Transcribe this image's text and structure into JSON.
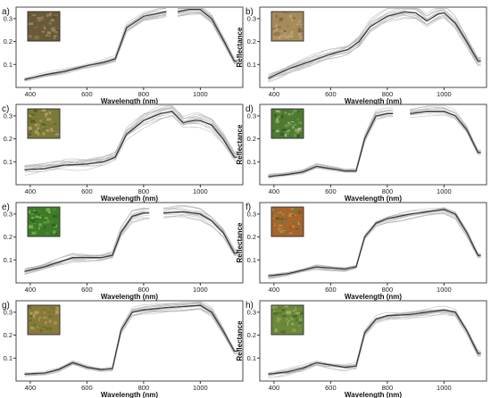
{
  "figure": {
    "xlabel": "Wavelength (nm)",
    "ylabel": "Reflectance"
  },
  "colors": {
    "bundle": "#b5b5b5",
    "mean": "#3a3a3a",
    "frame": "#4a4a4a"
  },
  "chart_data": [
    {
      "label": "a)",
      "type": "line",
      "xlabel": "Wavelength (nm)",
      "ylabel": "Reflectance",
      "xlim": [
        350,
        1150
      ],
      "ylim": [
        0,
        0.35
      ],
      "xticks": [
        400,
        600,
        800,
        1000
      ],
      "yticks": [
        0.1,
        0.2,
        0.3
      ],
      "gaps": [
        [
          880,
          920
        ]
      ],
      "thumbnail": "soil-litter-photo",
      "mean": {
        "x": [
          380,
          450,
          520,
          600,
          660,
          700,
          740,
          800,
          860,
          880,
          920,
          960,
          1000,
          1040,
          1080,
          1120
        ],
        "y": [
          0.035,
          0.055,
          0.07,
          0.095,
          0.11,
          0.125,
          0.26,
          0.31,
          0.325,
          0.33,
          0.33,
          0.34,
          0.34,
          0.3,
          0.21,
          0.115
        ]
      },
      "spread": 0.012
    },
    {
      "label": "b)",
      "type": "line",
      "xlabel": "Wavelength (nm)",
      "ylabel": "Reflectance",
      "xlim": [
        350,
        1150
      ],
      "ylim": [
        0,
        0.35
      ],
      "xticks": [
        400,
        600,
        800,
        1000
      ],
      "yticks": [
        0.1,
        0.2,
        0.3
      ],
      "gaps": [],
      "thumbnail": "dry-litter-photo",
      "mean": {
        "x": [
          380,
          450,
          520,
          600,
          660,
          700,
          740,
          800,
          860,
          900,
          940,
          980,
          1000,
          1040,
          1080,
          1120
        ],
        "y": [
          0.04,
          0.08,
          0.11,
          0.145,
          0.165,
          0.2,
          0.265,
          0.31,
          0.33,
          0.325,
          0.29,
          0.32,
          0.325,
          0.28,
          0.2,
          0.115
        ]
      },
      "spread": 0.025
    },
    {
      "label": "c)",
      "type": "line",
      "xlabel": "Wavelength (nm)",
      "ylabel": "Reflectance",
      "xlim": [
        350,
        1150
      ],
      "ylim": [
        0,
        0.35
      ],
      "xticks": [
        400,
        600,
        800,
        1000
      ],
      "yticks": [
        0.1,
        0.2,
        0.3
      ],
      "gaps": [],
      "thumbnail": "mixed-grass-photo",
      "mean": {
        "x": [
          380,
          450,
          520,
          600,
          660,
          700,
          740,
          800,
          860,
          900,
          940,
          980,
          1000,
          1040,
          1080,
          1120
        ],
        "y": [
          0.065,
          0.07,
          0.085,
          0.09,
          0.1,
          0.12,
          0.22,
          0.28,
          0.31,
          0.32,
          0.27,
          0.28,
          0.28,
          0.26,
          0.2,
          0.12
        ]
      },
      "spread": 0.03
    },
    {
      "label": "d)",
      "type": "line",
      "xlabel": "Wavelength (nm)",
      "ylabel": "Reflectance",
      "xlim": [
        350,
        1150
      ],
      "ylim": [
        0,
        0.35
      ],
      "xticks": [
        400,
        600,
        800,
        1000
      ],
      "yticks": [
        0.1,
        0.2,
        0.3
      ],
      "gaps": [
        [
          820,
          875
        ]
      ],
      "thumbnail": "green-vegetation-photo",
      "mean": {
        "x": [
          380,
          450,
          500,
          550,
          600,
          650,
          690,
          720,
          760,
          800,
          880,
          940,
          1000,
          1040,
          1080,
          1120
        ],
        "y": [
          0.035,
          0.045,
          0.055,
          0.08,
          0.07,
          0.06,
          0.06,
          0.2,
          0.3,
          0.31,
          0.31,
          0.32,
          0.32,
          0.3,
          0.24,
          0.14
        ]
      },
      "spread": 0.012
    },
    {
      "label": "e)",
      "type": "line",
      "xlabel": "Wavelength (nm)",
      "ylabel": "Reflectance",
      "xlim": [
        350,
        1150
      ],
      "ylim": [
        0,
        0.35
      ],
      "xticks": [
        400,
        600,
        800,
        1000
      ],
      "yticks": [
        0.1,
        0.2,
        0.3
      ],
      "gaps": [
        [
          820,
          870
        ]
      ],
      "thumbnail": "grass-sward-photo",
      "mean": {
        "x": [
          380,
          450,
          500,
          550,
          600,
          650,
          690,
          720,
          760,
          800,
          880,
          940,
          1000,
          1040,
          1080,
          1120
        ],
        "y": [
          0.05,
          0.07,
          0.09,
          0.11,
          0.11,
          0.11,
          0.12,
          0.22,
          0.29,
          0.305,
          0.305,
          0.31,
          0.3,
          0.27,
          0.22,
          0.13
        ]
      },
      "spread": 0.02
    },
    {
      "label": "f)",
      "type": "line",
      "xlabel": "Wavelength (nm)",
      "ylabel": "Reflectance",
      "xlim": [
        350,
        1150
      ],
      "ylim": [
        0,
        0.35
      ],
      "xticks": [
        400,
        600,
        800,
        1000
      ],
      "yticks": [
        0.1,
        0.2,
        0.3
      ],
      "gaps": [],
      "thumbnail": "reddish-vegetation-photo",
      "mean": {
        "x": [
          380,
          450,
          500,
          550,
          600,
          650,
          690,
          720,
          760,
          800,
          880,
          940,
          1000,
          1040,
          1080,
          1120
        ],
        "y": [
          0.03,
          0.04,
          0.055,
          0.07,
          0.065,
          0.06,
          0.07,
          0.2,
          0.26,
          0.28,
          0.3,
          0.31,
          0.32,
          0.3,
          0.22,
          0.12
        ]
      },
      "spread": 0.015
    },
    {
      "label": "g)",
      "type": "line",
      "xlabel": "Wavelength (nm)",
      "ylabel": "Reflectance",
      "xlim": [
        350,
        1150
      ],
      "ylim": [
        0,
        0.35
      ],
      "xticks": [
        400,
        600,
        800,
        1000
      ],
      "yticks": [
        0.1,
        0.2,
        0.3
      ],
      "gaps": [],
      "thumbnail": "moss-litter-photo",
      "mean": {
        "x": [
          380,
          450,
          500,
          550,
          600,
          650,
          690,
          720,
          760,
          800,
          880,
          940,
          1000,
          1040,
          1080,
          1120
        ],
        "y": [
          0.03,
          0.035,
          0.05,
          0.08,
          0.06,
          0.05,
          0.055,
          0.22,
          0.3,
          0.31,
          0.32,
          0.325,
          0.33,
          0.3,
          0.22,
          0.13
        ]
      },
      "spread": 0.012
    },
    {
      "label": "h)",
      "type": "line",
      "xlabel": "Wavelength (nm)",
      "ylabel": "Reflectance",
      "xlim": [
        350,
        1150
      ],
      "ylim": [
        0,
        0.35
      ],
      "xticks": [
        400,
        600,
        800,
        1000
      ],
      "yticks": [
        0.1,
        0.2,
        0.3
      ],
      "gaps": [],
      "thumbnail": "green-grass-photo",
      "mean": {
        "x": [
          380,
          450,
          500,
          550,
          600,
          650,
          690,
          720,
          760,
          800,
          880,
          940,
          1000,
          1040,
          1080,
          1120
        ],
        "y": [
          0.03,
          0.04,
          0.055,
          0.08,
          0.07,
          0.06,
          0.065,
          0.21,
          0.27,
          0.285,
          0.29,
          0.3,
          0.31,
          0.3,
          0.22,
          0.12
        ]
      },
      "spread": 0.02
    }
  ]
}
